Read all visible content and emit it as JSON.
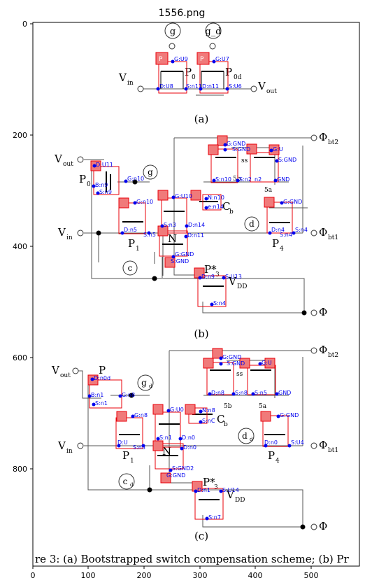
{
  "figure": {
    "title": "1556.png",
    "caption": "re 3: (a) Bootstrapped switch compensation scheme; (b) Pr",
    "x_ticks": [
      "0",
      "100",
      "200",
      "300",
      "400",
      "500"
    ],
    "y_ticks": [
      "0",
      "200",
      "400",
      "600",
      "800"
    ]
  },
  "panel_a": {
    "label": "(a)",
    "gates": [
      "g",
      "g_d"
    ],
    "vin": "V",
    "vin_sub": "in",
    "vout": "V",
    "vout_sub": "out",
    "devices": [
      "P",
      "P"
    ],
    "device_labels": [
      "P",
      "P"
    ],
    "device_subs": [
      "0",
      "0d"
    ],
    "nodes": [
      "G:U9",
      "G:U7",
      "D:U8",
      "S:n11",
      "D:n11",
      "S:U6"
    ]
  },
  "panel_b": {
    "label": "(b)",
    "phi_bt2": "Φ",
    "phi_bt2_sub": "bt2",
    "phi_bt1": "Φ",
    "phi_bt1_sub": "bt1",
    "phi": "Φ",
    "vout": "V",
    "vout_sub": "out",
    "vin": "V",
    "vin_sub": "in",
    "vdd": "V",
    "vdd_sub": "DD",
    "p0": "P",
    "p0_sub": "0",
    "p1": "P",
    "p1_sub": "1",
    "p4": "P",
    "p4_sub": "4",
    "p5b": "5b",
    "p5a": "5a",
    "pstar": "P*",
    "pstar_sub": "3",
    "n": "N",
    "ss": "ss",
    "circle_g": "g",
    "circle_c": "c",
    "circle_d": "d",
    "cb": "C",
    "cb_sub": "b",
    "nodes": [
      "D:U11",
      "G:n10",
      "B:n9",
      "S:n9",
      "G:GND",
      "S:GND",
      "G:U",
      "S:GND",
      "S:n10",
      "S:n2",
      "n2",
      "GND",
      "G:n10",
      "G:U10",
      "N:n10",
      "e:n14",
      "G:GND",
      "D:n5",
      "S:n5",
      "S:n3",
      "D:n14",
      "D:n11",
      "D:n4",
      "S:n4",
      "S:n4",
      "G:GND",
      "S:GND",
      "D:n9",
      "S:U13",
      "S:n4"
    ]
  },
  "panel_c": {
    "label": "(c)",
    "phi_bt2": "Φ",
    "phi_bt2_sub": "bt2",
    "phi_bt1": "Φ",
    "phi_bt1_sub": "bt1",
    "phi": "Φ",
    "vout": "V",
    "vout_sub": "out",
    "vin": "V",
    "vin_sub": "in",
    "vdd": "V",
    "vdd_sub": "DD",
    "p0": "P",
    "p1": "P",
    "p1_sub": "1",
    "p4": "P",
    "p4_sub": "4",
    "p5b": "5b",
    "p5a": "5a",
    "pstar": "P*",
    "pstar_sub": "3",
    "n": "N",
    "ss": "ss",
    "circle_gd": "g",
    "circle_gd_sub": "d",
    "circle_cd": "c",
    "circle_cd_sub": "d",
    "circle_dd": "d",
    "circle_dd_sub": "d",
    "cb": "C",
    "cb_sub": "b",
    "nodes": [
      "D:n0d",
      "B:n1",
      "S:n1",
      "G:n8",
      "G:GND",
      "S:GND",
      "G:U",
      "D:n8",
      "S:n8",
      "S:n5",
      "GND",
      "G:U0",
      "N:n8",
      "G:n8",
      "S:nC",
      "G:GND",
      "D:U",
      "S:n3",
      "S:n1",
      "D:n0",
      "D:n0",
      "D:n0",
      "S:U4",
      "S:GND2",
      "G:GND",
      "D:n1",
      "S:U14",
      "S:n7"
    ]
  },
  "colors": {
    "wire": "#555555",
    "box": "#e8000a",
    "tag_fill": "#f07a7a",
    "node": "#0000ee",
    "dot": "#000000"
  }
}
